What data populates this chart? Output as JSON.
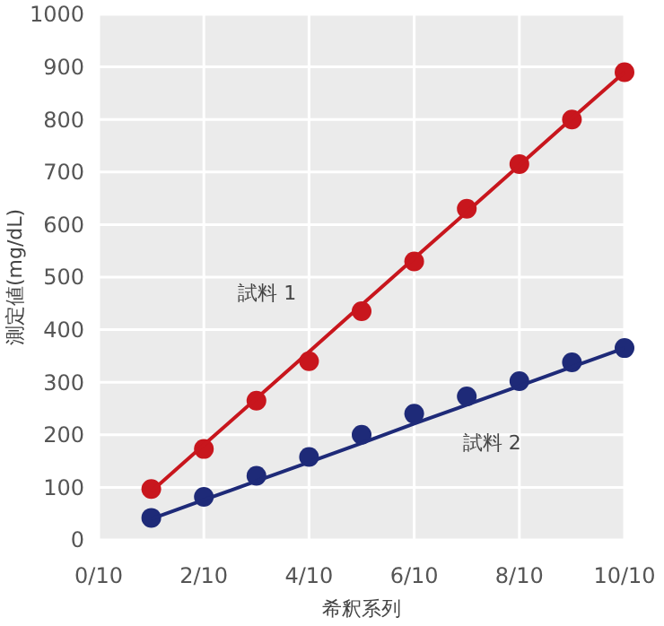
{
  "chart_data": {
    "type": "scatter",
    "xlabel": "希釈系列",
    "ylabel": "測定値(mg/dL)",
    "x": [
      0.1,
      0.2,
      0.3,
      0.4,
      0.5,
      0.6,
      0.7,
      0.8,
      0.9,
      1.0
    ],
    "series": [
      {
        "color": "#c8161d",
        "values": [
          97,
          173,
          265,
          340,
          435,
          530,
          630,
          715,
          800,
          890
        ]
      },
      {
        "color": "#1e2a78",
        "values": [
          42,
          82,
          122,
          158,
          200,
          240,
          273,
          302,
          338,
          365
        ]
      },
      {
        "type": "line",
        "name": "試料 1",
        "marker": "none",
        "color": "#c8161d",
        "values": [
          92,
          181,
          269,
          358,
          447,
          536,
          624,
          713,
          802,
          890
        ]
      },
      {
        "type": "line",
        "name": "試料 2",
        "marker": "none",
        "color": "#1e2a78",
        "values": [
          40,
          76,
          112,
          148,
          184,
          221,
          257,
          293,
          329,
          365
        ]
      }
    ],
    "xlim": [
      0,
      1
    ],
    "ylim": [
      0,
      1000
    ],
    "xticks": [
      {
        "value": 0,
        "label": "0/10"
      },
      {
        "value": 0.2,
        "label": "2/10"
      },
      {
        "value": 0.4,
        "label": "4/10"
      },
      {
        "value": 0.6,
        "label": "6/10"
      },
      {
        "value": 0.8,
        "label": "8/10"
      },
      {
        "value": 1,
        "label": "10/10"
      }
    ],
    "yticks": [
      0,
      100,
      200,
      300,
      400,
      500,
      600,
      700,
      800,
      900,
      1000
    ],
    "grid": true,
    "marker": "circle",
    "line_style": "solid"
  }
}
